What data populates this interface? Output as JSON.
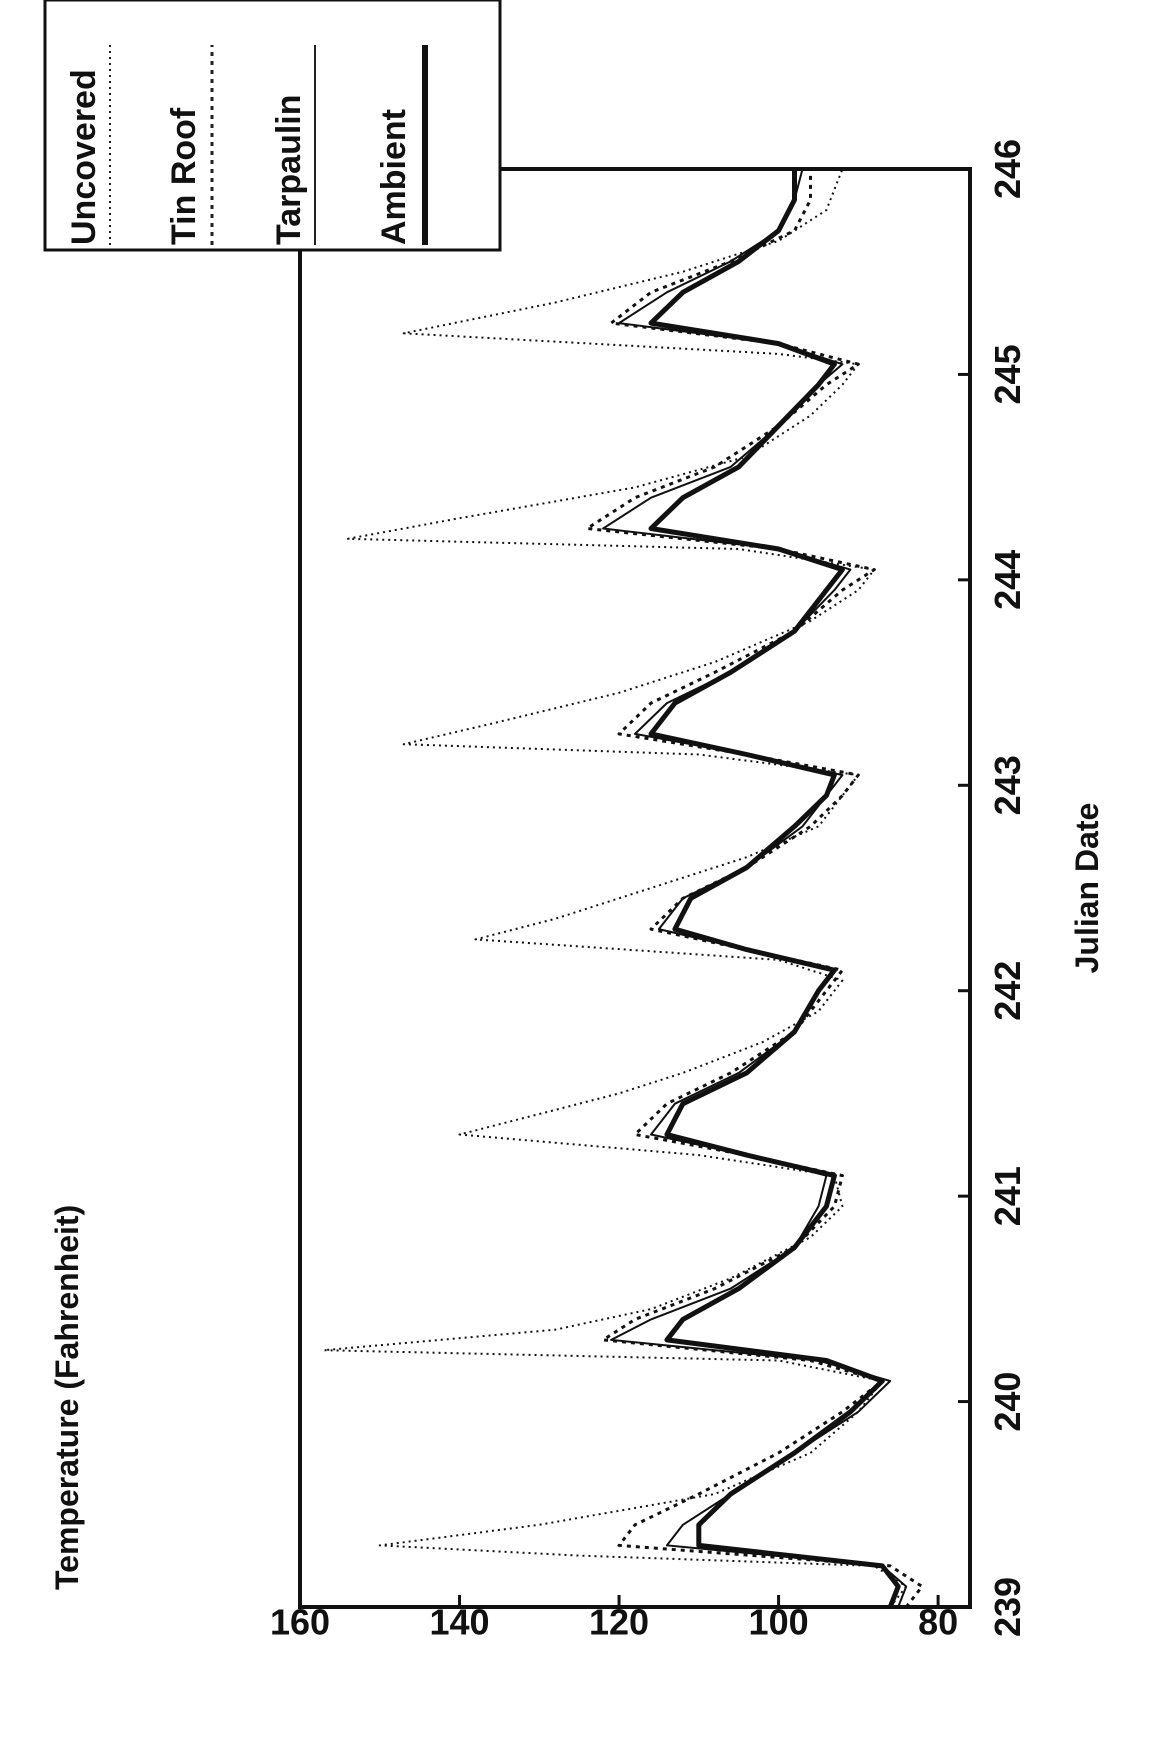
{
  "chart_data": {
    "type": "line",
    "ylabel": "Temperature (Fahrenheit)",
    "xlabel": "Julian Date",
    "xlim": [
      239,
      246
    ],
    "ylim": [
      76,
      160
    ],
    "x_ticks": [
      "239",
      "240",
      "241",
      "242",
      "243",
      "244",
      "245",
      "246"
    ],
    "y_ticks": [
      "80",
      "100",
      "120",
      "140",
      "160"
    ],
    "grid": false,
    "legend_position": "top-right",
    "series": [
      {
        "name": "Uncovered",
        "style": "dotted-thin",
        "points": [
          [
            239.0,
            86
          ],
          [
            239.1,
            84
          ],
          [
            239.2,
            88
          ],
          [
            239.25,
            125
          ],
          [
            239.3,
            150
          ],
          [
            239.4,
            130
          ],
          [
            239.55,
            108
          ],
          [
            239.75,
            96
          ],
          [
            239.95,
            90
          ],
          [
            240.1,
            87
          ],
          [
            240.2,
            100
          ],
          [
            240.25,
            157
          ],
          [
            240.35,
            128
          ],
          [
            240.45,
            116
          ],
          [
            240.6,
            106
          ],
          [
            240.8,
            96
          ],
          [
            240.95,
            92
          ],
          [
            241.1,
            93
          ],
          [
            241.2,
            110
          ],
          [
            241.3,
            140
          ],
          [
            241.4,
            130
          ],
          [
            241.5,
            120
          ],
          [
            241.6,
            112
          ],
          [
            241.75,
            102
          ],
          [
            241.9,
            95
          ],
          [
            242.05,
            92
          ],
          [
            242.15,
            100
          ],
          [
            242.25,
            138
          ],
          [
            242.35,
            128
          ],
          [
            242.5,
            116
          ],
          [
            242.65,
            104
          ],
          [
            242.8,
            95
          ],
          [
            242.95,
            92
          ],
          [
            243.05,
            90
          ],
          [
            243.15,
            110
          ],
          [
            243.2,
            147
          ],
          [
            243.3,
            136
          ],
          [
            243.45,
            120
          ],
          [
            243.6,
            108
          ],
          [
            243.8,
            96
          ],
          [
            243.95,
            90
          ],
          [
            244.05,
            88
          ],
          [
            244.15,
            105
          ],
          [
            244.2,
            154
          ],
          [
            244.3,
            140
          ],
          [
            244.45,
            118
          ],
          [
            244.6,
            104
          ],
          [
            244.8,
            96
          ],
          [
            244.95,
            92
          ],
          [
            245.05,
            90
          ],
          [
            245.1,
            100
          ],
          [
            245.2,
            147
          ],
          [
            245.35,
            128
          ],
          [
            245.5,
            112
          ],
          [
            245.65,
            100
          ],
          [
            245.8,
            94
          ],
          [
            246.0,
            92
          ]
        ]
      },
      {
        "name": "Tin Roof",
        "style": "dotted",
        "points": [
          [
            239.0,
            84
          ],
          [
            239.1,
            82
          ],
          [
            239.2,
            86
          ],
          [
            239.3,
            120
          ],
          [
            239.4,
            118
          ],
          [
            239.55,
            110
          ],
          [
            239.75,
            100
          ],
          [
            239.95,
            92
          ],
          [
            240.1,
            87
          ],
          [
            240.2,
            96
          ],
          [
            240.3,
            122
          ],
          [
            240.4,
            118
          ],
          [
            240.55,
            108
          ],
          [
            240.75,
            98
          ],
          [
            240.95,
            93
          ],
          [
            241.1,
            92
          ],
          [
            241.2,
            104
          ],
          [
            241.3,
            118
          ],
          [
            241.45,
            114
          ],
          [
            241.6,
            106
          ],
          [
            241.8,
            98
          ],
          [
            242.0,
            94
          ],
          [
            242.1,
            92
          ],
          [
            242.2,
            104
          ],
          [
            242.3,
            116
          ],
          [
            242.45,
            112
          ],
          [
            242.6,
            104
          ],
          [
            242.8,
            96
          ],
          [
            242.95,
            92
          ],
          [
            243.05,
            90
          ],
          [
            243.15,
            104
          ],
          [
            243.25,
            120
          ],
          [
            243.4,
            116
          ],
          [
            243.55,
            108
          ],
          [
            243.75,
            98
          ],
          [
            243.95,
            92
          ],
          [
            244.05,
            88
          ],
          [
            244.15,
            100
          ],
          [
            244.25,
            124
          ],
          [
            244.4,
            118
          ],
          [
            244.55,
            108
          ],
          [
            244.75,
            100
          ],
          [
            244.95,
            94
          ],
          [
            245.05,
            90
          ],
          [
            245.15,
            100
          ],
          [
            245.25,
            121
          ],
          [
            245.4,
            116
          ],
          [
            245.55,
            106
          ],
          [
            245.7,
            98
          ],
          [
            245.85,
            96
          ],
          [
            246.0,
            96
          ]
        ]
      },
      {
        "name": "Tarpaulin",
        "style": "solid-thin",
        "points": [
          [
            239.0,
            85
          ],
          [
            239.1,
            84
          ],
          [
            239.2,
            87
          ],
          [
            239.3,
            114
          ],
          [
            239.4,
            112
          ],
          [
            239.55,
            106
          ],
          [
            239.75,
            98
          ],
          [
            239.95,
            90
          ],
          [
            240.1,
            86
          ],
          [
            240.2,
            95
          ],
          [
            240.3,
            121
          ],
          [
            240.4,
            116
          ],
          [
            240.55,
            106
          ],
          [
            240.75,
            98
          ],
          [
            240.95,
            95
          ],
          [
            241.1,
            94
          ],
          [
            241.2,
            104
          ],
          [
            241.3,
            116
          ],
          [
            241.45,
            113
          ],
          [
            241.6,
            105
          ],
          [
            241.8,
            98
          ],
          [
            242.0,
            95
          ],
          [
            242.1,
            93
          ],
          [
            242.2,
            104
          ],
          [
            242.3,
            115
          ],
          [
            242.45,
            112
          ],
          [
            242.6,
            104
          ],
          [
            242.8,
            97
          ],
          [
            242.95,
            94
          ],
          [
            243.05,
            92
          ],
          [
            243.15,
            104
          ],
          [
            243.25,
            118
          ],
          [
            243.4,
            114
          ],
          [
            243.55,
            106
          ],
          [
            243.75,
            98
          ],
          [
            243.95,
            93
          ],
          [
            244.05,
            91
          ],
          [
            244.15,
            100
          ],
          [
            244.25,
            122
          ],
          [
            244.4,
            116
          ],
          [
            244.55,
            106
          ],
          [
            244.75,
            100
          ],
          [
            244.95,
            95
          ],
          [
            245.05,
            92
          ],
          [
            245.15,
            100
          ],
          [
            245.25,
            120
          ],
          [
            245.4,
            114
          ],
          [
            245.55,
            106
          ],
          [
            245.7,
            100
          ],
          [
            245.85,
            98
          ],
          [
            246.0,
            97
          ]
        ]
      },
      {
        "name": "Ambient",
        "style": "solid-thick",
        "points": [
          [
            239.0,
            86
          ],
          [
            239.1,
            85
          ],
          [
            239.2,
            87
          ],
          [
            239.3,
            110
          ],
          [
            239.4,
            110
          ],
          [
            239.55,
            106
          ],
          [
            239.75,
            98
          ],
          [
            239.95,
            91
          ],
          [
            240.1,
            87
          ],
          [
            240.2,
            94
          ],
          [
            240.3,
            114
          ],
          [
            240.4,
            112
          ],
          [
            240.55,
            105
          ],
          [
            240.75,
            98
          ],
          [
            240.95,
            94
          ],
          [
            241.1,
            93
          ],
          [
            241.2,
            104
          ],
          [
            241.3,
            114
          ],
          [
            241.45,
            112
          ],
          [
            241.6,
            104
          ],
          [
            241.8,
            98
          ],
          [
            242.0,
            95
          ],
          [
            242.1,
            93
          ],
          [
            242.2,
            104
          ],
          [
            242.3,
            113
          ],
          [
            242.45,
            111
          ],
          [
            242.6,
            104
          ],
          [
            242.8,
            98
          ],
          [
            242.95,
            94
          ],
          [
            243.05,
            93
          ],
          [
            243.15,
            104
          ],
          [
            243.25,
            116
          ],
          [
            243.4,
            113
          ],
          [
            243.55,
            106
          ],
          [
            243.75,
            98
          ],
          [
            243.95,
            94
          ],
          [
            244.05,
            92
          ],
          [
            244.15,
            100
          ],
          [
            244.25,
            116
          ],
          [
            244.4,
            112
          ],
          [
            244.55,
            105
          ],
          [
            244.75,
            100
          ],
          [
            244.95,
            95
          ],
          [
            245.05,
            93
          ],
          [
            245.15,
            100
          ],
          [
            245.25,
            116
          ],
          [
            245.4,
            112
          ],
          [
            245.55,
            105
          ],
          [
            245.7,
            100
          ],
          [
            245.85,
            98
          ],
          [
            246.0,
            98
          ]
        ]
      }
    ]
  }
}
